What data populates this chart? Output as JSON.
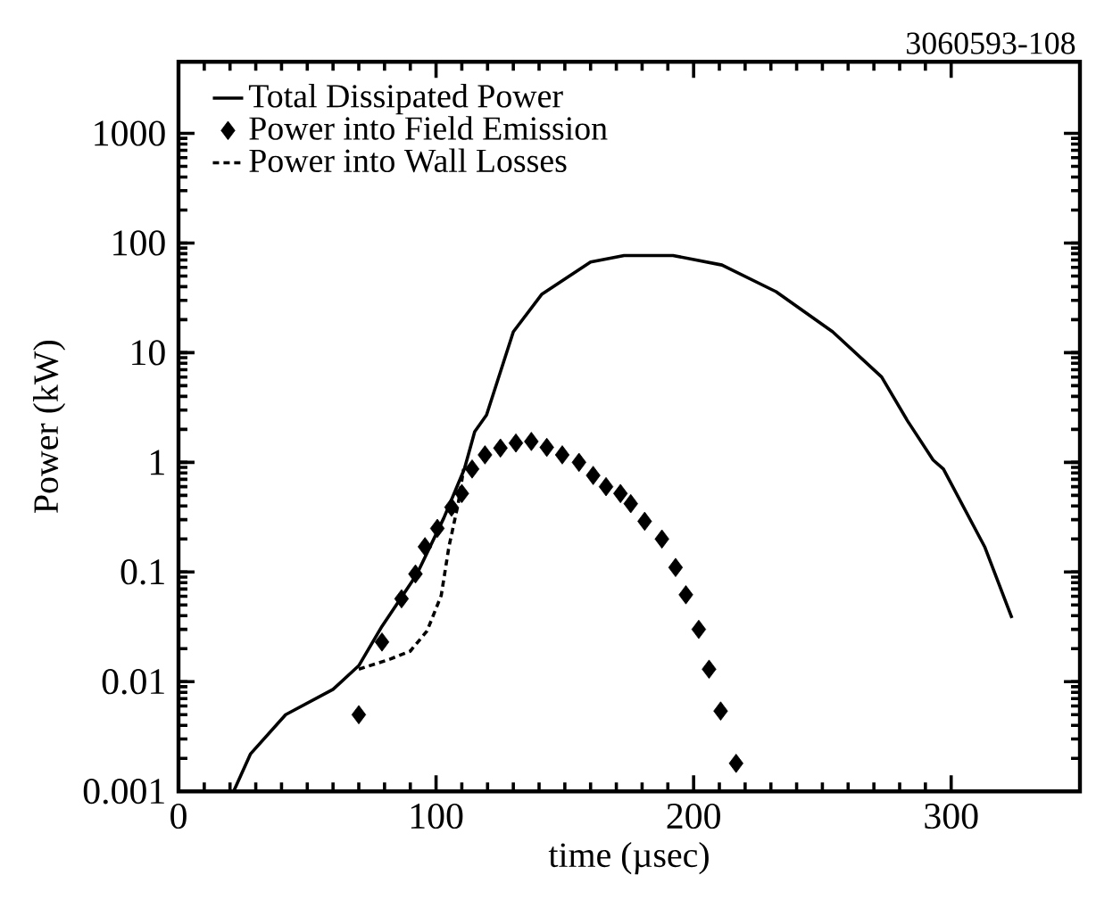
{
  "chart_data": {
    "type": "line",
    "xlabel": "time (µsec)",
    "ylabel": "Power (kW)",
    "annotations": [
      "3060593-108"
    ],
    "xlim": [
      0,
      350
    ],
    "ylim": [
      0.001,
      4500
    ],
    "xticks": [
      0,
      100,
      200,
      300
    ],
    "yticks": [
      0.001,
      0.01,
      0.1,
      1,
      10,
      100,
      1000
    ],
    "log": "y",
    "legend": "top left",
    "series": [
      {
        "name": "Total Dissipated Power",
        "color": "#000000",
        "line_style": "solid",
        "x": [
          21.4,
          28,
          41.6,
          60,
          70,
          79,
          92.5,
          103,
          111,
          115,
          119.6,
          130,
          141,
          160,
          173,
          192,
          211,
          232,
          254,
          273,
          283,
          293,
          297,
          313,
          323.6
        ],
        "values": [
          0.001,
          0.0022,
          0.005,
          0.0085,
          0.014,
          0.032,
          0.095,
          0.31,
          0.87,
          1.9,
          2.7,
          15.5,
          34,
          67,
          77,
          77,
          63,
          36,
          15.5,
          6,
          2.4,
          1.05,
          0.87,
          0.17,
          0.038
        ]
      },
      {
        "name": "Power into Field Emission",
        "type": "scatter",
        "color": "#000000",
        "marker": "diamond",
        "x": [
          70,
          79,
          86.6,
          92,
          95.7,
          100.5,
          106,
          110,
          114,
          119,
          125,
          131,
          137,
          143,
          149,
          155.5,
          161,
          166,
          171.6,
          175.6,
          181,
          187.7,
          193,
          197,
          202,
          206,
          210.5,
          216.5
        ],
        "values": [
          0.005,
          0.023,
          0.057,
          0.096,
          0.17,
          0.25,
          0.39,
          0.52,
          0.87,
          1.17,
          1.35,
          1.5,
          1.55,
          1.37,
          1.17,
          1.0,
          0.76,
          0.6,
          0.52,
          0.42,
          0.29,
          0.2,
          0.11,
          0.062,
          0.03,
          0.013,
          0.0054,
          0.0018
        ]
      },
      {
        "name": "Power into Wall Losses",
        "color": "#000000",
        "line_style": "dashed",
        "x": [
          70,
          82,
          90,
          96.5,
          102,
          105,
          108.6,
          110.7
        ],
        "values": [
          0.013,
          0.016,
          0.019,
          0.029,
          0.061,
          0.17,
          0.42,
          0.87
        ]
      }
    ]
  }
}
